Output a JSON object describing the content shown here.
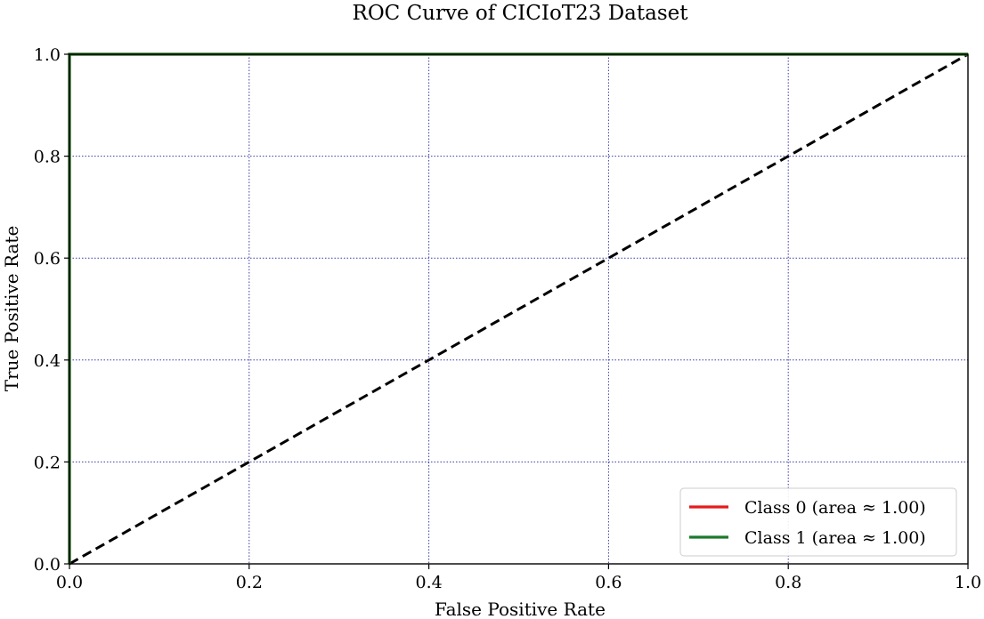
{
  "chart_data": {
    "type": "line",
    "title": "ROC Curve of CICIoT23 Dataset",
    "xlabel": "False Positive Rate",
    "ylabel": "True Positive Rate",
    "xlim": [
      0.0,
      1.0
    ],
    "ylim": [
      0.0,
      1.0
    ],
    "xticks": [
      "0.0",
      "0.2",
      "0.4",
      "0.6",
      "0.8",
      "1.0"
    ],
    "yticks": [
      "0.0",
      "0.2",
      "0.4",
      "0.6",
      "0.8",
      "1.0"
    ],
    "grid": true,
    "grid_color": "#3a3aa8",
    "legend_position": "lower-right",
    "series": [
      {
        "name": "Class 0 (area ≈ 1.00)",
        "color": "#e41a1c",
        "x": [
          0.0,
          0.0,
          1.0
        ],
        "y": [
          0.0,
          1.0,
          1.0
        ]
      },
      {
        "name": "Class 1 (area ≈ 1.00)",
        "color": "#1a7a2a",
        "x": [
          0.0,
          0.0,
          1.0
        ],
        "y": [
          0.0,
          1.0,
          1.0
        ]
      }
    ],
    "reference_line": {
      "style": "dashed",
      "color": "#000000",
      "x": [
        0.0,
        1.0
      ],
      "y": [
        0.0,
        1.0
      ]
    }
  }
}
